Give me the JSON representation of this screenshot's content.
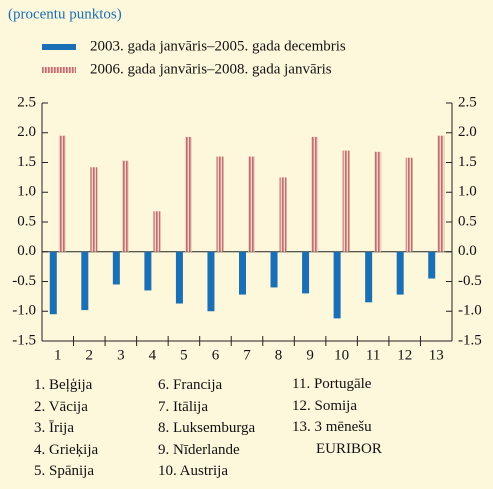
{
  "chart_data": {
    "type": "bar",
    "subtitle": "(procentu punktos)",
    "categories": [
      "1",
      "2",
      "3",
      "4",
      "5",
      "6",
      "7",
      "8",
      "9",
      "10",
      "11",
      "12",
      "13"
    ],
    "series": [
      {
        "name": "2003. gada janvāris–2005. gada decembris",
        "color": "#1a6fb5",
        "values": [
          -1.05,
          -0.98,
          -0.55,
          -0.65,
          -0.87,
          -1.0,
          -0.72,
          -0.6,
          -0.7,
          -1.12,
          -0.85,
          -0.72,
          -0.45
        ]
      },
      {
        "name": "2006. gada janvāris–2008. gada janvāris",
        "color": "#c0706c",
        "values": [
          1.95,
          1.42,
          1.53,
          0.68,
          1.93,
          1.6,
          1.6,
          1.25,
          1.93,
          1.7,
          1.68,
          1.58,
          1.95
        ]
      }
    ],
    "ylim": [
      -1.5,
      2.5
    ],
    "yticks": [
      2.5,
      {
        "value": 2,
        "label": "2.0"
      },
      1.5,
      {
        "value": 1,
        "label": "1.0"
      },
      0.5,
      {
        "value": 0,
        "label": "0.0"
      },
      -0.5,
      {
        "value": -1,
        "label": "-1.0"
      },
      -1.5
    ],
    "key": [
      "1. Beļģija",
      "2. Vācija",
      "3. Īrija",
      "4. Grieķija",
      "5. Spānija",
      "6. Francija",
      "7. Itālija",
      "8. Luksemburga",
      "9. Nīderlande",
      "10. Austrija",
      "11. Portugāle",
      "12. Somija",
      "13. 3 mēnešu EURIBOR"
    ]
  }
}
